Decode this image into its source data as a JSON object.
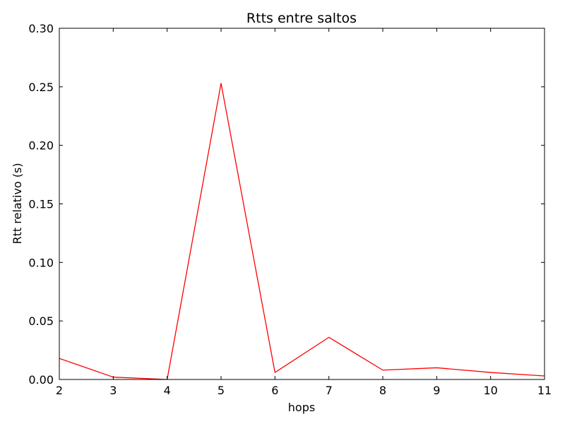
{
  "chart_data": {
    "type": "line",
    "title": "Rtts entre saltos",
    "xlabel": "hops",
    "ylabel": "Rtt relativo (s)",
    "xlim": [
      2,
      11
    ],
    "ylim": [
      0,
      0.3
    ],
    "xticks": [
      "2",
      "3",
      "4",
      "5",
      "6",
      "7",
      "8",
      "9",
      "10",
      "11"
    ],
    "yticks": [
      "0.00",
      "0.05",
      "0.10",
      "0.15",
      "0.20",
      "0.25",
      "0.30"
    ],
    "grid": false,
    "series": [
      {
        "color": "#ff0000",
        "x": [
          2,
          3,
          4,
          5,
          6,
          7,
          8,
          9,
          10,
          11
        ],
        "y": [
          0.018,
          0.002,
          0.0,
          0.253,
          0.006,
          0.036,
          0.008,
          0.01,
          0.006,
          0.003
        ]
      }
    ]
  }
}
